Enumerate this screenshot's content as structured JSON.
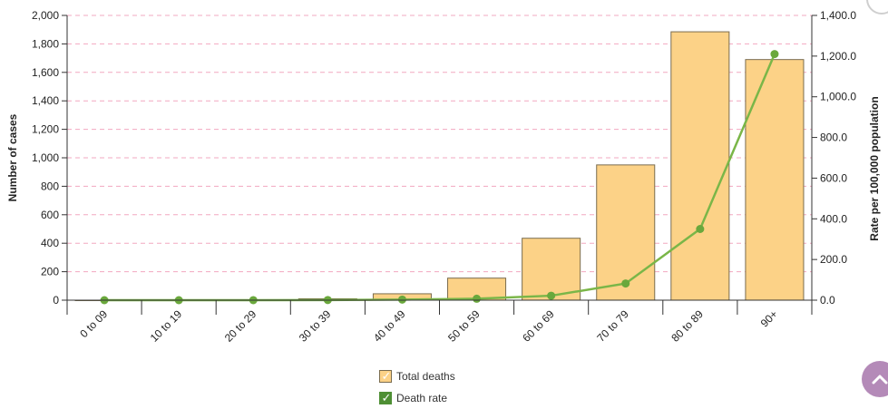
{
  "chart_data": {
    "type": "bar",
    "categories": [
      "0 to 09",
      "10 to 19",
      "20 to 29",
      "30 to 39",
      "40 to 49",
      "50 to 59",
      "60 to 69",
      "70 to 79",
      "80 to 89",
      "90+"
    ],
    "series": [
      {
        "name": "Total deaths",
        "type": "bar",
        "axis": "left",
        "values": [
          0,
          0,
          2,
          10,
          45,
          155,
          435,
          950,
          1885,
          1690
        ]
      },
      {
        "name": "Death rate",
        "type": "line",
        "axis": "right",
        "values": [
          0.0,
          0.0,
          0.2,
          0.6,
          3.0,
          7.0,
          22.0,
          82.0,
          350.0,
          1210.0
        ]
      }
    ],
    "ylabel": "Number of cases",
    "y2label": "Rate per 100,000 population",
    "ylim": [
      0,
      2000
    ],
    "y2lim": [
      0,
      1400
    ],
    "yticks": [
      "0",
      "200",
      "400",
      "600",
      "800",
      "1,000",
      "1,200",
      "1,400",
      "1,600",
      "1,800",
      "2,000"
    ],
    "y2ticks": [
      "0.0",
      "200.0",
      "400.0",
      "600.0",
      "800.0",
      "1,000.0",
      "1,200.0",
      "1,400.0"
    ],
    "grid": true,
    "legend_position": "bottom-center"
  },
  "colors": {
    "bar_fill": "#fcd287",
    "bar_stroke": "#7a6c4e",
    "line": "#7ab648",
    "point": "#6aa83c",
    "grid": "#f2a8c0",
    "axis": "#333333",
    "legend_check_line": "#4e8f34",
    "scroll_button": "#b48ab8"
  },
  "legend": {
    "items": [
      {
        "label": "Total deaths",
        "checked": true
      },
      {
        "label": "Death rate",
        "checked": true
      }
    ]
  },
  "scroll_button": {
    "icon": "chevron-up-icon"
  }
}
